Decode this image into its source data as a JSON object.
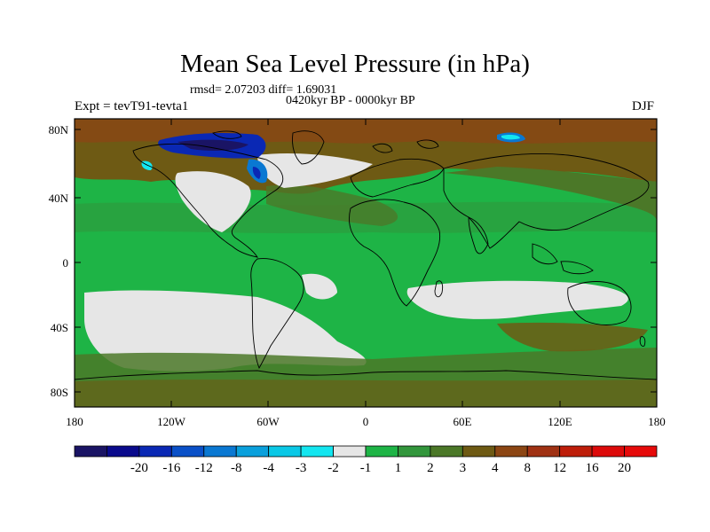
{
  "title": "Mean Sea Level Pressure (in hPa)",
  "stats": "rmsd= 2.07203  diff= 1.69031",
  "period": "0420kyr BP - 0000kyr BP",
  "expt": "Expt = tevT91-tevta1",
  "season": "DJF",
  "x_ticks": [
    "180",
    "120W",
    "60W",
    "0",
    "60E",
    "120E",
    "180"
  ],
  "y_ticks": [
    "80N",
    "40N",
    "0",
    "40S",
    "80S"
  ],
  "colorbar": {
    "colors": [
      "#1a1464",
      "#0a0a8c",
      "#0a28b4",
      "#0a50c8",
      "#0a78d2",
      "#0aa0dc",
      "#0ac8e6",
      "#14e6f0",
      "#e6e6e6",
      "#1eb446",
      "#32963c",
      "#4b7828",
      "#6e5a14",
      "#8c4614",
      "#a03214",
      "#be1e0a",
      "#dc0a0a",
      "#e60a0a"
    ],
    "labels": [
      "-20",
      "-16",
      "-12",
      "-8",
      "-4",
      "-3",
      "-2",
      "-1",
      "1",
      "2",
      "3",
      "4",
      "8",
      "12",
      "16",
      "20"
    ]
  }
}
